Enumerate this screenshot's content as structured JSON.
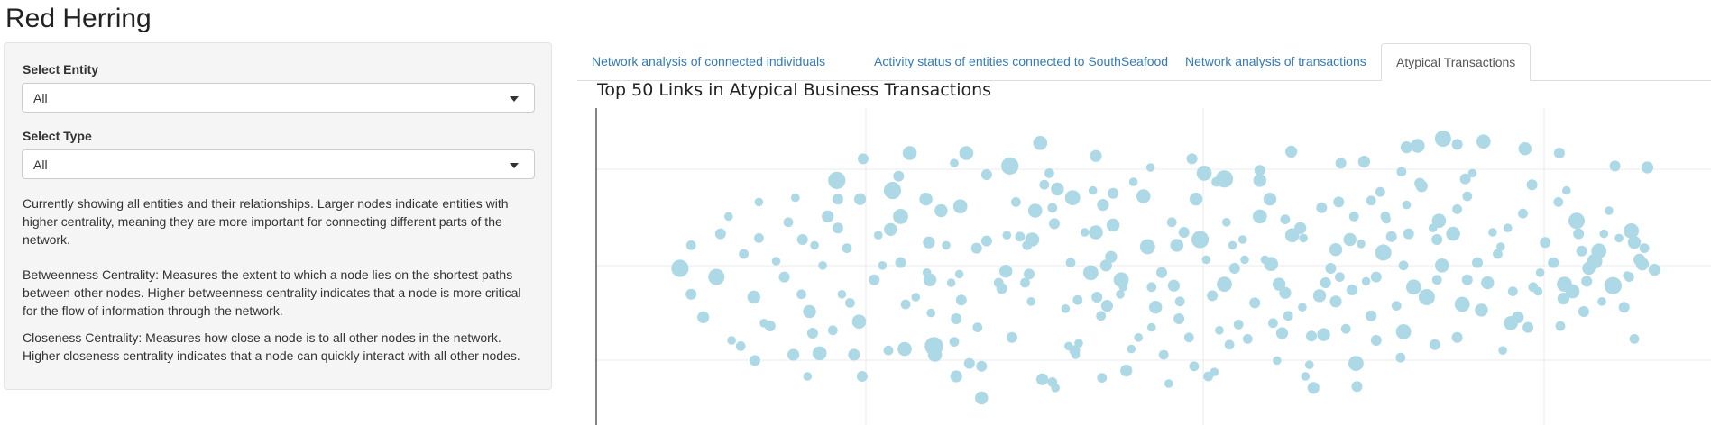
{
  "app": {
    "title": "Red Herring"
  },
  "sidebar": {
    "entity_label": "Select Entity",
    "entity_value": "All",
    "type_label": "Select Type",
    "type_value": "All",
    "description": "Currently showing all entities and their relationships. Larger nodes indicate entities with higher centrality, meaning they are more important for connecting different parts of the network.",
    "betweenness": "Betweenness Centrality: Measures the extent to which a node lies on the shortest paths between other nodes. Higher betweenness centrality indicates that a node is more critical for the flow of information through the network.",
    "closeness": "Closeness Centrality: Measures how close a node is to all other nodes in the network. Higher closeness centrality indicates that a node can quickly interact with all other nodes."
  },
  "tabs": [
    {
      "label": "Network analysis of connected individuals",
      "active": false
    },
    {
      "label": "Activity status of entities connected to SouthSeafood",
      "active": false
    },
    {
      "label": "Network analysis of transactions",
      "active": false
    },
    {
      "label": "Atypical Transactions",
      "active": true
    }
  ],
  "colors": {
    "node": "#add8e6",
    "grid": "#ebebeb",
    "axis": "#333333",
    "link": "#337ab7"
  },
  "chart_data": {
    "type": "scatter",
    "title": "Top 50 Links in Atypical Business Transactions",
    "xlim": [
      0,
      100
    ],
    "ylim": [
      0,
      100
    ],
    "grid": true,
    "nodes": [
      [
        3.2,
        50.0,
        1.6
      ],
      [
        4.3,
        41.0,
        1.0
      ],
      [
        4.3,
        58.0,
        0.9
      ],
      [
        5.5,
        33.0,
        1.1
      ],
      [
        6.8,
        47.0,
        1.5
      ],
      [
        7.2,
        62.0,
        1.0
      ],
      [
        8.0,
        68.0,
        0.8
      ],
      [
        8.3,
        25.0,
        0.8
      ],
      [
        9.5,
        55.0,
        0.9
      ],
      [
        10.5,
        40.0,
        1.2
      ],
      [
        10.6,
        18.0,
        1.0
      ],
      [
        11.0,
        73.0,
        0.8
      ],
      [
        11.0,
        60.5,
        0.9
      ],
      [
        12.1,
        30.0,
        1.0
      ],
      [
        12.7,
        52.5,
        0.8
      ],
      [
        13.5,
        47.0,
        1.0
      ],
      [
        13.9,
        66.0,
        0.9
      ],
      [
        14.4,
        20.0,
        1.1
      ],
      [
        14.6,
        74.5,
        0.8
      ],
      [
        15.2,
        41.0,
        0.9
      ],
      [
        15.3,
        60.0,
        1.0
      ],
      [
        15.8,
        12.5,
        0.8
      ],
      [
        16.0,
        35.0,
        1.2
      ],
      [
        16.3,
        27.5,
        1.0
      ],
      [
        17.0,
        20.5,
        1.3
      ],
      [
        17.3,
        51.0,
        0.8
      ],
      [
        17.8,
        68.0,
        1.1
      ],
      [
        18.3,
        28.5,
        0.9
      ],
      [
        18.7,
        80.5,
        1.6
      ],
      [
        18.8,
        74.0,
        1.0
      ],
      [
        18.8,
        64.0,
        1.0
      ],
      [
        19.2,
        41.0,
        0.8
      ],
      [
        19.7,
        57.0,
        0.9
      ],
      [
        20.4,
        20.0,
        1.1
      ],
      [
        20.9,
        31.5,
        1.3
      ],
      [
        21.0,
        74.0,
        1.1
      ],
      [
        21.2,
        12.5,
        1.0
      ],
      [
        22.4,
        46.0,
        1.0
      ],
      [
        22.8,
        61.5,
        0.8
      ],
      [
        23.2,
        51.0,
        0.8
      ],
      [
        23.8,
        21.5,
        0.9
      ],
      [
        24.0,
        63.5,
        1.2
      ],
      [
        24.2,
        77.0,
        1.6
      ],
      [
        25.0,
        52.0,
        1.0
      ],
      [
        25.0,
        68.0,
        1.4
      ],
      [
        25.4,
        22.0,
        1.3
      ],
      [
        25.5,
        37.5,
        0.9
      ],
      [
        26.5,
        40.0,
        0.8
      ],
      [
        27.5,
        74.0,
        1.2
      ],
      [
        27.6,
        48.5,
        0.8
      ],
      [
        27.8,
        59.0,
        1.1
      ],
      [
        27.9,
        46.0,
        1.2
      ],
      [
        28.0,
        34.5,
        0.8
      ],
      [
        28.2,
        22.0,
        0.9
      ],
      [
        28.3,
        23.0,
        1.7
      ],
      [
        28.4,
        20.0,
        1.3
      ],
      [
        29.0,
        70.0,
        1.2
      ],
      [
        29.5,
        58.0,
        0.8
      ],
      [
        30.0,
        45.0,
        0.8
      ],
      [
        30.3,
        24.5,
        0.9
      ],
      [
        30.5,
        12.5,
        1.1
      ],
      [
        30.5,
        32.5,
        1.0
      ],
      [
        30.8,
        48.0,
        0.8
      ],
      [
        31.0,
        39.0,
        1.0
      ],
      [
        31.5,
        90.0,
        1.3
      ],
      [
        31.8,
        17.0,
        1.0
      ],
      [
        32.5,
        57.0,
        1.0
      ],
      [
        32.6,
        29.5,
        0.9
      ],
      [
        33.0,
        5.0,
        1.2
      ],
      [
        33.5,
        82.5,
        1.0
      ],
      [
        33.5,
        59.5,
        1.0
      ],
      [
        34.7,
        45.0,
        0.9
      ],
      [
        35.0,
        43.0,
        1.0
      ],
      [
        35.4,
        49.0,
        1.2
      ],
      [
        35.5,
        61.5,
        0.8
      ],
      [
        35.8,
        85.5,
        1.6
      ],
      [
        36.4,
        73.0,
        0.9
      ],
      [
        36.8,
        61.0,
        0.9
      ],
      [
        37.3,
        45.0,
        0.9
      ],
      [
        37.7,
        48.0,
        1.0
      ],
      [
        37.9,
        38.5,
        0.8
      ],
      [
        38.0,
        60.0,
        1.3
      ],
      [
        38.3,
        70.0,
        1.3
      ],
      [
        38.8,
        93.5,
        1.3
      ],
      [
        39.0,
        11.5,
        1.1
      ],
      [
        39.2,
        79.0,
        0.9
      ],
      [
        39.7,
        83.0,
        0.9
      ],
      [
        40.0,
        71.0,
        0.9
      ],
      [
        40.0,
        10.5,
        0.9
      ],
      [
        40.3,
        8.5,
        0.8
      ],
      [
        40.5,
        77.5,
        1.2
      ],
      [
        41.3,
        36.0,
        0.8
      ],
      [
        41.6,
        23.0,
        0.8
      ],
      [
        41.8,
        52.0,
        0.9
      ],
      [
        42.0,
        74.5,
        1.4
      ],
      [
        42.2,
        21.5,
        1.0
      ],
      [
        42.3,
        20.0,
        0.8
      ],
      [
        42.5,
        39.0,
        0.9
      ],
      [
        42.6,
        24.0,
        0.8
      ],
      [
        43.2,
        62.5,
        0.8
      ],
      [
        43.8,
        48.5,
        1.4
      ],
      [
        44.0,
        77.0,
        0.8
      ],
      [
        44.3,
        62.5,
        1.3
      ],
      [
        44.4,
        40.0,
        1.0
      ],
      [
        44.8,
        33.5,
        0.9
      ],
      [
        44.9,
        12.0,
        0.9
      ],
      [
        45.0,
        72.0,
        1.1
      ],
      [
        45.3,
        51.0,
        1.1
      ],
      [
        45.4,
        37.0,
        1.1
      ],
      [
        45.8,
        54.0,
        1.1
      ],
      [
        46.0,
        76.0,
        1.0
      ],
      [
        46.7,
        41.0,
        0.8
      ],
      [
        46.8,
        46.0,
        1.4
      ],
      [
        47.0,
        43.5,
        0.8
      ],
      [
        47.3,
        14.5,
        1.1
      ],
      [
        47.4,
        15.0,
        0.8
      ],
      [
        47.8,
        22.0,
        0.8
      ],
      [
        48.0,
        80.0,
        0.8
      ],
      [
        48.5,
        26.0,
        0.8
      ],
      [
        49.0,
        75.0,
        1.3
      ],
      [
        49.4,
        57.5,
        1.4
      ],
      [
        49.8,
        43.5,
        0.9
      ],
      [
        49.8,
        29.5,
        0.8
      ],
      [
        50.2,
        36.5,
        1.2
      ],
      [
        50.8,
        48.5,
        1.0
      ],
      [
        51.0,
        20.0,
        0.9
      ],
      [
        51.5,
        10.0,
        0.8
      ],
      [
        52.0,
        44.0,
        1.1
      ],
      [
        52.3,
        58.0,
        1.2
      ],
      [
        52.5,
        32.5,
        1.0
      ],
      [
        53.0,
        62.5,
        1.0
      ],
      [
        53.5,
        26.0,
        0.9
      ],
      [
        53.8,
        88.0,
        1.0
      ],
      [
        54.0,
        16.0,
        0.9
      ],
      [
        54.2,
        74.0,
        1.2
      ],
      [
        54.6,
        60.0,
        1.6
      ],
      [
        55.0,
        83.0,
        1.4
      ],
      [
        55.2,
        53.0,
        0.8
      ],
      [
        55.4,
        12.5,
        0.9
      ],
      [
        55.8,
        40.5,
        1.0
      ],
      [
        56.0,
        14.0,
        0.8
      ],
      [
        56.2,
        80.0,
        0.9
      ],
      [
        57.0,
        44.5,
        1.4
      ],
      [
        57.0,
        81.0,
        1.6
      ],
      [
        57.5,
        23.5,
        0.9
      ],
      [
        57.8,
        58.0,
        0.8
      ],
      [
        58.0,
        50.0,
        1.0
      ],
      [
        58.4,
        30.5,
        0.9
      ],
      [
        58.8,
        60.0,
        0.8
      ],
      [
        59.0,
        53.0,
        0.8
      ],
      [
        59.3,
        25.5,
        0.9
      ],
      [
        60.0,
        38.0,
        1.0
      ],
      [
        60.5,
        68.0,
        1.3
      ],
      [
        60.5,
        80.5,
        1.2
      ],
      [
        60.5,
        84.0,
        1.0
      ],
      [
        61.0,
        53.0,
        0.8
      ],
      [
        61.5,
        74.0,
        1.2
      ],
      [
        61.6,
        51.5,
        1.3
      ],
      [
        62.2,
        18.0,
        0.8
      ],
      [
        62.4,
        44.5,
        1.2
      ],
      [
        62.7,
        27.5,
        1.1
      ],
      [
        63.0,
        41.5,
        1.1
      ],
      [
        63.3,
        33.5,
        0.9
      ],
      [
        63.7,
        61.5,
        1.3
      ],
      [
        64.5,
        64.0,
        1.1
      ],
      [
        64.7,
        36.5,
        0.8
      ],
      [
        64.8,
        60.5,
        0.8
      ],
      [
        65.0,
        12.5,
        0.8
      ],
      [
        65.4,
        16.5,
        0.8
      ],
      [
        65.6,
        26.5,
        1.0
      ],
      [
        65.8,
        8.5,
        1.1
      ],
      [
        66.4,
        40.5,
        1.2
      ],
      [
        66.8,
        27.0,
        1.2
      ],
      [
        67.0,
        45.0,
        1.0
      ],
      [
        67.5,
        50.0,
        1.0
      ],
      [
        68.0,
        56.5,
        1.2
      ],
      [
        68.0,
        38.5,
        1.1
      ],
      [
        68.3,
        73.0,
        1.0
      ],
      [
        68.4,
        47.0,
        0.9
      ],
      [
        69.0,
        29.0,
        0.9
      ],
      [
        69.4,
        60.0,
        1.2
      ],
      [
        69.6,
        42.5,
        1.0
      ],
      [
        69.8,
        68.0,
        0.9
      ],
      [
        70.0,
        17.0,
        1.4
      ],
      [
        70.1,
        9.0,
        1.0
      ],
      [
        70.5,
        58.5,
        0.8
      ],
      [
        71.0,
        45.5,
        0.8
      ],
      [
        71.5,
        33.5,
        1.0
      ],
      [
        72.0,
        47.0,
        1.0
      ],
      [
        72.0,
        25.0,
        1.0
      ],
      [
        72.4,
        76.5,
        0.9
      ],
      [
        72.7,
        55.5,
        1.5
      ],
      [
        72.9,
        68.0,
        0.9
      ],
      [
        73.0,
        67.0,
        0.8
      ],
      [
        73.5,
        61.0,
        1.0
      ],
      [
        74.0,
        37.0,
        0.9
      ],
      [
        74.4,
        19.0,
        0.9
      ],
      [
        74.5,
        83.5,
        0.9
      ],
      [
        74.7,
        28.0,
        1.4
      ],
      [
        74.7,
        51.0,
        0.9
      ],
      [
        75.0,
        72.0,
        0.8
      ],
      [
        75.2,
        62.0,
        1.0
      ],
      [
        75.7,
        43.5,
        1.4
      ],
      [
        76.3,
        79.5,
        1.0
      ],
      [
        76.5,
        78.5,
        1.1
      ],
      [
        77.0,
        40.0,
        1.5
      ],
      [
        77.6,
        64.0,
        0.8
      ],
      [
        77.8,
        23.5,
        1.0
      ],
      [
        78.0,
        46.0,
        0.9
      ],
      [
        78.2,
        66.5,
        1.3
      ],
      [
        78.5,
        51.0,
        1.3
      ],
      [
        79.6,
        62.0,
        1.3
      ],
      [
        80.0,
        26.0,
        1.0
      ],
      [
        80.5,
        37.5,
        1.4
      ],
      [
        80.8,
        81.0,
        1.0
      ],
      [
        81.0,
        75.0,
        0.9
      ],
      [
        81.5,
        83.0,
        0.8
      ],
      [
        82.0,
        52.0,
        1.0
      ],
      [
        82.4,
        35.5,
        1.2
      ],
      [
        83.0,
        45.0,
        1.2
      ],
      [
        84.0,
        55.0,
        0.9
      ],
      [
        84.3,
        57.5,
        0.8
      ],
      [
        84.5,
        21.5,
        0.8
      ],
      [
        85.0,
        64.0,
        0.8
      ],
      [
        85.3,
        31.0,
        1.3
      ],
      [
        85.5,
        42.0,
        0.9
      ],
      [
        86.5,
        69.0,
        0.9
      ],
      [
        87.0,
        29.5,
        1.0
      ],
      [
        87.4,
        79.0,
        1.0
      ],
      [
        88.0,
        42.0,
        0.8
      ],
      [
        88.2,
        48.5,
        0.8
      ],
      [
        88.7,
        59.0,
        1.0
      ],
      [
        89.5,
        52.0,
        1.0
      ],
      [
        90.0,
        73.0,
        0.9
      ],
      [
        90.2,
        30.0,
        0.9
      ],
      [
        90.5,
        39.5,
        1.1
      ],
      [
        90.6,
        44.5,
        1.4
      ],
      [
        90.8,
        77.0,
        0.8
      ],
      [
        91.4,
        42.0,
        1.3
      ],
      [
        92.0,
        62.0,
        1.0
      ],
      [
        92.3,
        56.0,
        1.0
      ],
      [
        92.5,
        35.0,
        1.0
      ],
      [
        93.0,
        50.0,
        1.2
      ],
      [
        93.6,
        52.5,
        1.4
      ],
      [
        94.0,
        56.0,
        1.4
      ],
      [
        94.5,
        62.0,
        0.8
      ],
      [
        95.0,
        70.0,
        0.8
      ],
      [
        95.4,
        44.0,
        1.6
      ],
      [
        96.0,
        60.5,
        0.8
      ],
      [
        96.5,
        36.5,
        1.0
      ],
      [
        97.0,
        47.0,
        0.9
      ],
      [
        97.5,
        59.0,
        1.2
      ],
      [
        98.0,
        53.0,
        1.1
      ],
      [
        97.2,
        63.0,
        1.4
      ],
      [
        97.5,
        25.5,
        0.9
      ],
      [
        98.3,
        51.5,
        1.2
      ],
      [
        98.5,
        57.0,
        0.9
      ],
      [
        25.9,
        90.0,
        1.3
      ],
      [
        30.3,
        86.5,
        0.8
      ],
      [
        30.9,
        71.5,
        1.3
      ],
      [
        33.0,
        16.0,
        1.0
      ],
      [
        37.5,
        58.0,
        0.9
      ],
      [
        40.2,
        65.5,
        1.0
      ],
      [
        46.0,
        65.0,
        1.2
      ],
      [
        51.8,
        66.0,
        0.9
      ],
      [
        57.2,
        66.0,
        0.8
      ],
      [
        63.0,
        67.0,
        0.9
      ],
      [
        66.6,
        71.0,
        1.0
      ],
      [
        71.5,
        73.5,
        0.9
      ],
      [
        78.0,
        60.0,
        1.0
      ],
      [
        81.0,
        46.0,
        1.0
      ],
      [
        86.0,
        33.0,
        1.1
      ],
      [
        91.8,
        66.5,
        1.5
      ],
      [
        94.3,
        38.5,
        0.8
      ],
      [
        96.8,
        47.5,
        0.8
      ],
      [
        99.5,
        49.5,
        1.1
      ],
      [
        11.5,
        31.0,
        0.8
      ],
      [
        16.5,
        58.0,
        0.8
      ],
      [
        20.0,
        38.0,
        0.9
      ],
      [
        36.0,
        26.0,
        1.0
      ],
      [
        49.7,
        85.0,
        0.8
      ],
      [
        52.6,
        38.5,
        0.9
      ],
      [
        56.5,
        28.5,
        0.8
      ],
      [
        61.8,
        31.0,
        0.9
      ],
      [
        68.5,
        86.5,
        1.0
      ],
      [
        80.0,
        70.5,
        0.9
      ],
      [
        83.5,
        62.5,
        0.8
      ],
      [
        87.5,
        43.5,
        0.9
      ],
      [
        92.8,
        45.5,
        1.0
      ],
      [
        9.2,
        23.0,
        0.9
      ],
      [
        21.3,
        88.0,
        1.0
      ],
      [
        24.8,
        82.0,
        1.0
      ],
      [
        44.3,
        89.0,
        1.1
      ],
      [
        63.6,
        90.5,
        1.1
      ],
      [
        70.8,
        87.0,
        1.1
      ],
      [
        75.0,
        92.0,
        1.1
      ],
      [
        80.0,
        93.0,
        1.0
      ],
      [
        76.1,
        92.5,
        1.3
      ],
      [
        78.6,
        95.0,
        1.5
      ],
      [
        82.6,
        94.0,
        1.3
      ],
      [
        86.7,
        91.5,
        1.2
      ],
      [
        90.1,
        90.0,
        1.0
      ],
      [
        95.6,
        85.5,
        1.0
      ],
      [
        98.8,
        85.0,
        1.1
      ]
    ]
  }
}
